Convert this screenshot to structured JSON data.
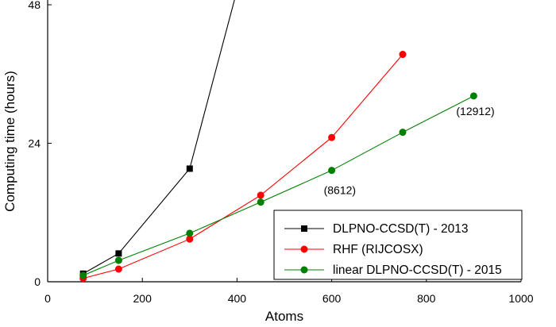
{
  "chart_data": {
    "type": "line",
    "title": "",
    "xlabel": "Atoms",
    "ylabel": "Computing time (hours)",
    "xlim": [
      0,
      1000
    ],
    "ylim": [
      0,
      48
    ],
    "xticks": [
      0,
      200,
      400,
      600,
      800,
      1000
    ],
    "yticks": [
      0,
      24,
      48
    ],
    "grid": false,
    "legend_position": "bottom-right",
    "series": [
      {
        "name": "DLPNO-CCSD(T) - 2013",
        "color": "#000000",
        "marker": "square",
        "x": [
          75,
          150,
          300,
          400
        ],
        "y": [
          1.4,
          4.9,
          19.6,
          50.5
        ]
      },
      {
        "name": "RHF (RIJCOSX)",
        "color": "#ff0000",
        "marker": "circle",
        "x": [
          75,
          150,
          300,
          450,
          600,
          750
        ],
        "y": [
          0.6,
          2.2,
          7.4,
          15.0,
          25.0,
          39.4
        ]
      },
      {
        "name": "linear DLPNO-CCSD(T) - 2015",
        "color": "#008000",
        "marker": "circle",
        "x": [
          75,
          150,
          300,
          450,
          600,
          750,
          900
        ],
        "y": [
          1.1,
          3.7,
          8.4,
          13.8,
          19.3,
          25.9,
          32.2
        ]
      }
    ],
    "annotations": [
      {
        "text": "(8612)",
        "x": 600,
        "y": 19.3
      },
      {
        "text": "(12912)",
        "x": 900,
        "y": 32.2
      }
    ]
  }
}
